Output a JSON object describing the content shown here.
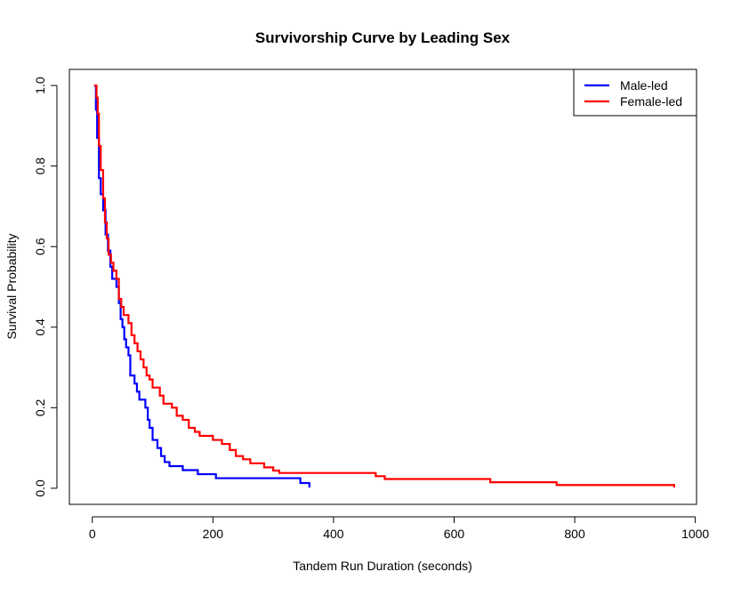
{
  "chart_data": {
    "type": "line",
    "step": true,
    "title": "Survivorship Curve by Leading Sex",
    "xlabel": "Tandem Run Duration (seconds)",
    "ylabel": "Survival Probability",
    "xlim": [
      -38,
      1002
    ],
    "ylim": [
      -0.04,
      1.04
    ],
    "xticks": [
      0,
      200,
      400,
      600,
      800,
      1000
    ],
    "yticks": [
      0.0,
      0.2,
      0.4,
      0.6,
      0.8,
      1.0
    ],
    "legend_position": "top-right",
    "series": [
      {
        "name": "Male-led",
        "color": "#0000ff",
        "points": [
          [
            3,
            1.0
          ],
          [
            6,
            0.94
          ],
          [
            8,
            0.87
          ],
          [
            11,
            0.77
          ],
          [
            14,
            0.73
          ],
          [
            18,
            0.69
          ],
          [
            22,
            0.63
          ],
          [
            26,
            0.59
          ],
          [
            30,
            0.55
          ],
          [
            33,
            0.52
          ],
          [
            40,
            0.5
          ],
          [
            44,
            0.46
          ],
          [
            47,
            0.42
          ],
          [
            50,
            0.4
          ],
          [
            53,
            0.37
          ],
          [
            56,
            0.35
          ],
          [
            60,
            0.33
          ],
          [
            63,
            0.28
          ],
          [
            70,
            0.26
          ],
          [
            74,
            0.24
          ],
          [
            78,
            0.22
          ],
          [
            88,
            0.2
          ],
          [
            92,
            0.17
          ],
          [
            95,
            0.15
          ],
          [
            100,
            0.12
          ],
          [
            108,
            0.1
          ],
          [
            114,
            0.08
          ],
          [
            120,
            0.065
          ],
          [
            128,
            0.055
          ],
          [
            150,
            0.045
          ],
          [
            175,
            0.035
          ],
          [
            205,
            0.025
          ],
          [
            345,
            0.013
          ],
          [
            360,
            0.002
          ]
        ]
      },
      {
        "name": "Female-led",
        "color": "#ff0000",
        "points": [
          [
            3,
            1.0
          ],
          [
            7,
            0.97
          ],
          [
            9,
            0.93
          ],
          [
            11,
            0.85
          ],
          [
            14,
            0.79
          ],
          [
            18,
            0.72
          ],
          [
            21,
            0.66
          ],
          [
            24,
            0.62
          ],
          [
            27,
            0.58
          ],
          [
            31,
            0.56
          ],
          [
            35,
            0.54
          ],
          [
            40,
            0.52
          ],
          [
            44,
            0.47
          ],
          [
            48,
            0.45
          ],
          [
            52,
            0.43
          ],
          [
            60,
            0.41
          ],
          [
            65,
            0.38
          ],
          [
            70,
            0.36
          ],
          [
            75,
            0.34
          ],
          [
            80,
            0.32
          ],
          [
            85,
            0.3
          ],
          [
            90,
            0.28
          ],
          [
            95,
            0.27
          ],
          [
            100,
            0.25
          ],
          [
            112,
            0.23
          ],
          [
            118,
            0.21
          ],
          [
            132,
            0.2
          ],
          [
            140,
            0.18
          ],
          [
            150,
            0.17
          ],
          [
            160,
            0.15
          ],
          [
            170,
            0.14
          ],
          [
            178,
            0.13
          ],
          [
            200,
            0.12
          ],
          [
            215,
            0.11
          ],
          [
            228,
            0.095
          ],
          [
            238,
            0.08
          ],
          [
            250,
            0.072
          ],
          [
            262,
            0.062
          ],
          [
            285,
            0.052
          ],
          [
            300,
            0.044
          ],
          [
            310,
            0.038
          ],
          [
            470,
            0.03
          ],
          [
            485,
            0.023
          ],
          [
            660,
            0.015
          ],
          [
            770,
            0.008
          ],
          [
            965,
            0.002
          ]
        ]
      }
    ]
  }
}
